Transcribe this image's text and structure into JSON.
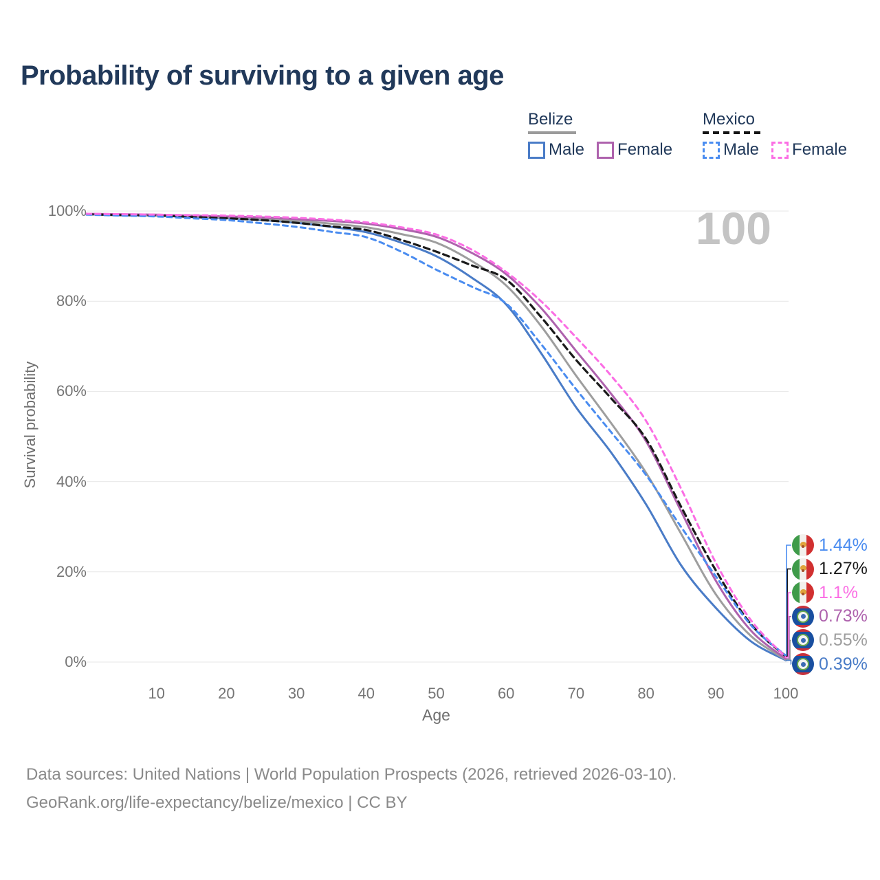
{
  "title": "Probability of surviving to a given age",
  "watermark": "100",
  "legend": {
    "groups": [
      {
        "label": "Belize",
        "style": "solid",
        "underline_color": "#9b9b9b",
        "items": [
          {
            "label": "Male",
            "color": "#4a7cc7",
            "dash": false
          },
          {
            "label": "Female",
            "color": "#ae62ad",
            "dash": false
          }
        ]
      },
      {
        "label": "Mexico",
        "style": "dashed",
        "underline_color": "#151515",
        "items": [
          {
            "label": "Male",
            "color": "#4a8cf0",
            "dash": true
          },
          {
            "label": "Female",
            "color": "#fb6ee4",
            "dash": true
          }
        ]
      }
    ]
  },
  "chart_data": {
    "type": "line",
    "title": "Probability of surviving to a given age",
    "xlabel": "Age",
    "ylabel": "Survival probability",
    "xlim": [
      0,
      100
    ],
    "ylim": [
      0,
      100
    ],
    "xticks": [
      10,
      20,
      30,
      40,
      50,
      60,
      70,
      80,
      90,
      100
    ],
    "yticks": [
      0,
      20,
      40,
      60,
      80,
      100
    ],
    "ytick_suffix": "%",
    "grid": "horizontal",
    "x": [
      0,
      5,
      10,
      15,
      20,
      25,
      30,
      35,
      40,
      45,
      50,
      55,
      60,
      65,
      70,
      75,
      80,
      85,
      90,
      95,
      100
    ],
    "series": [
      {
        "name": "Belize Male",
        "country": "Belize",
        "group": "Male",
        "color": "#4a7cc7",
        "dash": null,
        "width": 3,
        "values": [
          99.3,
          99.1,
          99.0,
          98.7,
          98.4,
          98.0,
          97.4,
          96.5,
          95.3,
          93.0,
          90.0,
          85.3,
          79.3,
          68.5,
          56.5,
          46.5,
          35.0,
          21.5,
          12.0,
          4.6,
          0.39
        ]
      },
      {
        "name": "Belize Both sexes",
        "country": "Belize",
        "group": "Both sexes",
        "color": "#9e9e9e",
        "dash": null,
        "width": 3,
        "values": [
          99.3,
          99.2,
          99.0,
          98.8,
          98.6,
          98.2,
          97.8,
          97.2,
          96.4,
          94.9,
          93.0,
          89.0,
          83.5,
          74.5,
          63.5,
          53.0,
          42.0,
          28.5,
          15.0,
          5.8,
          0.55
        ]
      },
      {
        "name": "Belize Female",
        "country": "Belize",
        "group": "Female",
        "color": "#ae62ad",
        "dash": null,
        "width": 3,
        "values": [
          99.4,
          99.3,
          99.2,
          99.0,
          98.8,
          98.6,
          98.2,
          97.8,
          97.2,
          96.0,
          94.3,
          90.8,
          86.0,
          78.5,
          69.0,
          59.5,
          49.0,
          33.5,
          18.0,
          7.0,
          0.73
        ]
      },
      {
        "name": "Mexico Both sexes",
        "country": "Mexico",
        "group": "Both sexes",
        "color": "#1a1a1a",
        "dash": "9 6",
        "width": 3.2,
        "values": [
          99.3,
          99.1,
          99.0,
          98.7,
          98.4,
          98.0,
          97.4,
          96.6,
          95.8,
          93.6,
          91.0,
          88.0,
          84.8,
          76.5,
          67.0,
          58.5,
          49.5,
          34.5,
          20.3,
          8.4,
          1.27
        ]
      },
      {
        "name": "Mexico Male",
        "country": "Mexico",
        "group": "Male",
        "color": "#4a8cf0",
        "dash": "7 6",
        "width": 3,
        "values": [
          99.2,
          99.0,
          98.8,
          98.4,
          98.0,
          97.3,
          96.5,
          95.4,
          94.2,
          91.0,
          87.0,
          83.3,
          79.5,
          70.5,
          60.5,
          51.0,
          41.5,
          30.0,
          19.0,
          8.2,
          1.44
        ]
      },
      {
        "name": "Mexico Female",
        "country": "Mexico",
        "group": "Female",
        "color": "#fb6ee4",
        "dash": "7 6",
        "width": 3,
        "values": [
          99.4,
          99.3,
          99.2,
          99.1,
          99.0,
          98.8,
          98.5,
          98.1,
          97.5,
          96.4,
          94.8,
          91.5,
          86.5,
          80.0,
          72.0,
          63.5,
          53.5,
          38.5,
          22.0,
          9.3,
          1.1
        ]
      }
    ],
    "end_labels": [
      {
        "text": "1.44%",
        "series": "Mexico Male",
        "flag": "mexico"
      },
      {
        "text": "1.27%",
        "series": "Mexico Both sexes",
        "flag": "mexico"
      },
      {
        "text": "1.1%",
        "series": "Mexico Female",
        "flag": "mexico"
      },
      {
        "text": "0.73%",
        "series": "Belize Female",
        "flag": "belize"
      },
      {
        "text": "0.55%",
        "series": "Belize Both sexes",
        "flag": "belize"
      },
      {
        "text": "0.39%",
        "series": "Belize Male",
        "flag": "belize"
      }
    ]
  },
  "footer": {
    "line1": "Data sources: United Nations | World Population Prospects (2026, retrieved 2026-03-10).",
    "line2": "GeoRank.org/life-expectancy/belize/mexico | CC BY"
  }
}
